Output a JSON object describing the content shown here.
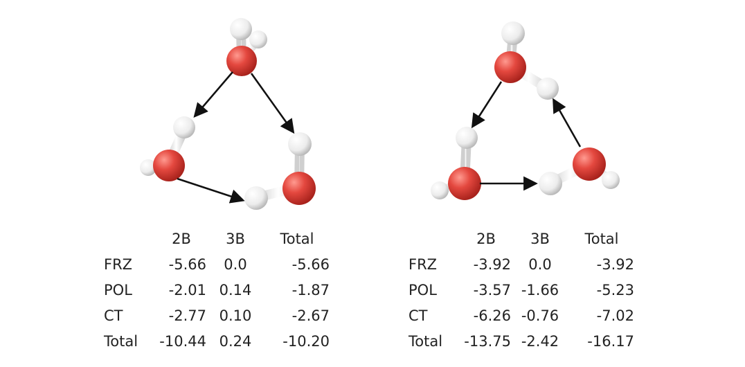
{
  "colors": {
    "oxygen": "#e0453f",
    "hydrogen": "#f2f2f2",
    "arrow": "#111111"
  },
  "left_table": {
    "headers": [
      "",
      "2B",
      "3B",
      "Total"
    ],
    "rows": [
      {
        "label": "FRZ",
        "values": [
          "-5.66",
          "0.0",
          "-5.66"
        ]
      },
      {
        "label": "POL",
        "values": [
          "-2.01",
          "0.14",
          "-1.87"
        ]
      },
      {
        "label": "CT",
        "values": [
          "-2.77",
          "0.10",
          "-2.67"
        ]
      },
      {
        "label": "Total",
        "values": [
          "-10.44",
          "0.24",
          "-10.20"
        ]
      }
    ]
  },
  "right_table": {
    "headers": [
      "",
      "2B",
      "3B",
      "Total"
    ],
    "rows": [
      {
        "label": "FRZ",
        "values": [
          "-3.92",
          "0.0",
          "-3.92"
        ]
      },
      {
        "label": "POL",
        "values": [
          "-3.57",
          "-1.66",
          "-5.23"
        ]
      },
      {
        "label": "CT",
        "values": [
          "-6.26",
          "-0.76",
          "-7.02"
        ]
      },
      {
        "label": "Total",
        "values": [
          "-13.75",
          "-2.42",
          "-16.17"
        ]
      }
    ]
  }
}
